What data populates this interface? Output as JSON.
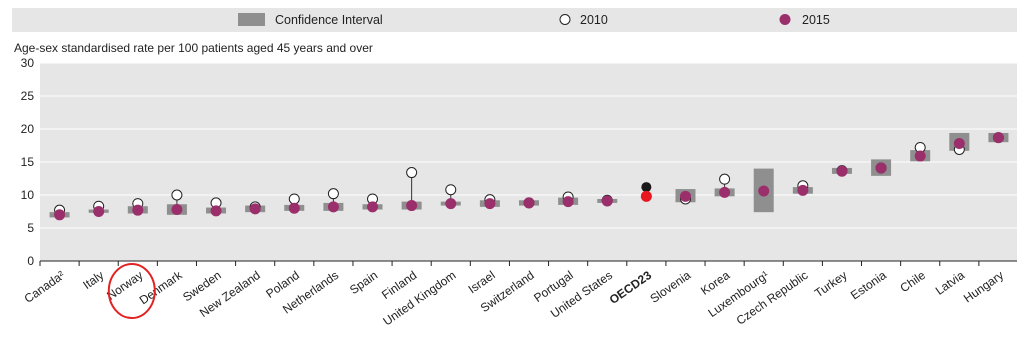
{
  "chart_data": {
    "type": "scatter",
    "ylabel": "Age-sex standardised rate per 100 patients aged 45 years and over",
    "ylim": [
      0,
      30
    ],
    "yticks": [
      0,
      5,
      10,
      15,
      20,
      25,
      30
    ],
    "grid": true,
    "legend_position": "top",
    "legend": [
      {
        "key": "ci",
        "label": "Confidence Interval"
      },
      {
        "key": "2010",
        "label": "2010"
      },
      {
        "key": "2015",
        "label": "2015"
      }
    ],
    "categories": [
      "Canada²",
      "Italy",
      "Norway",
      "Denmark",
      "Sweden",
      "New Zealand",
      "Poland",
      "Netherlands",
      "Spain",
      "Finland",
      "United Kingdom",
      "Israel",
      "Switzerland",
      "Portugal",
      "United States",
      "OECD23",
      "Slovenia",
      "Korea",
      "Luxembourg¹",
      "Czech Republic",
      "Turkey",
      "Estonia",
      "Chile",
      "Latvia",
      "Hungary"
    ],
    "series": [
      {
        "name": "2010",
        "values": [
          7.7,
          8.3,
          8.7,
          10.0,
          8.8,
          8.2,
          9.4,
          10.2,
          9.4,
          13.4,
          10.8,
          9.3,
          8.8,
          9.7,
          9.2,
          11.2,
          9.4,
          12.4,
          null,
          11.4,
          13.7,
          14.1,
          17.2,
          16.9,
          18.7
        ]
      },
      {
        "name": "2015",
        "values": [
          7.0,
          7.5,
          7.7,
          7.8,
          7.6,
          7.9,
          8.0,
          8.2,
          8.2,
          8.4,
          8.7,
          8.7,
          8.8,
          9.0,
          9.1,
          9.8,
          9.8,
          10.4,
          10.6,
          10.7,
          13.6,
          14.1,
          15.9,
          17.8,
          18.7
        ]
      }
    ],
    "confidence_interval": [
      [
        6.6,
        7.4
      ],
      [
        7.3,
        7.8
      ],
      [
        7.2,
        8.3
      ],
      [
        7.0,
        8.6
      ],
      [
        7.2,
        8.1
      ],
      [
        7.4,
        8.4
      ],
      [
        7.6,
        8.5
      ],
      [
        7.6,
        8.8
      ],
      [
        7.8,
        8.6
      ],
      [
        7.8,
        9.0
      ],
      [
        8.4,
        9.0
      ],
      [
        8.2,
        9.2
      ],
      [
        8.4,
        9.2
      ],
      [
        8.5,
        9.6
      ],
      [
        8.8,
        9.4
      ],
      null,
      [
        8.9,
        10.9
      ],
      [
        9.8,
        11.0
      ],
      [
        7.4,
        14.0
      ],
      [
        10.2,
        11.2
      ],
      [
        13.2,
        14.1
      ],
      [
        12.9,
        15.4
      ],
      [
        15.1,
        16.8
      ],
      [
        16.7,
        19.4
      ],
      [
        18.0,
        19.4
      ]
    ],
    "highlight": {
      "category": "OECD23",
      "color_2010": "#1a1a1a",
      "color_2015": "#e8171f"
    },
    "annotation": {
      "type": "circle",
      "category": "Norway",
      "color": "#e32222"
    }
  },
  "colors": {
    "background": "#e6e6e6",
    "ci_box": "#8f8f8f",
    "point_2015": "#9b2f6b",
    "point_2010_fill": "#ffffff",
    "point_2010_stroke": "#222222",
    "grid": "#ffffff",
    "axis": "#222222"
  }
}
